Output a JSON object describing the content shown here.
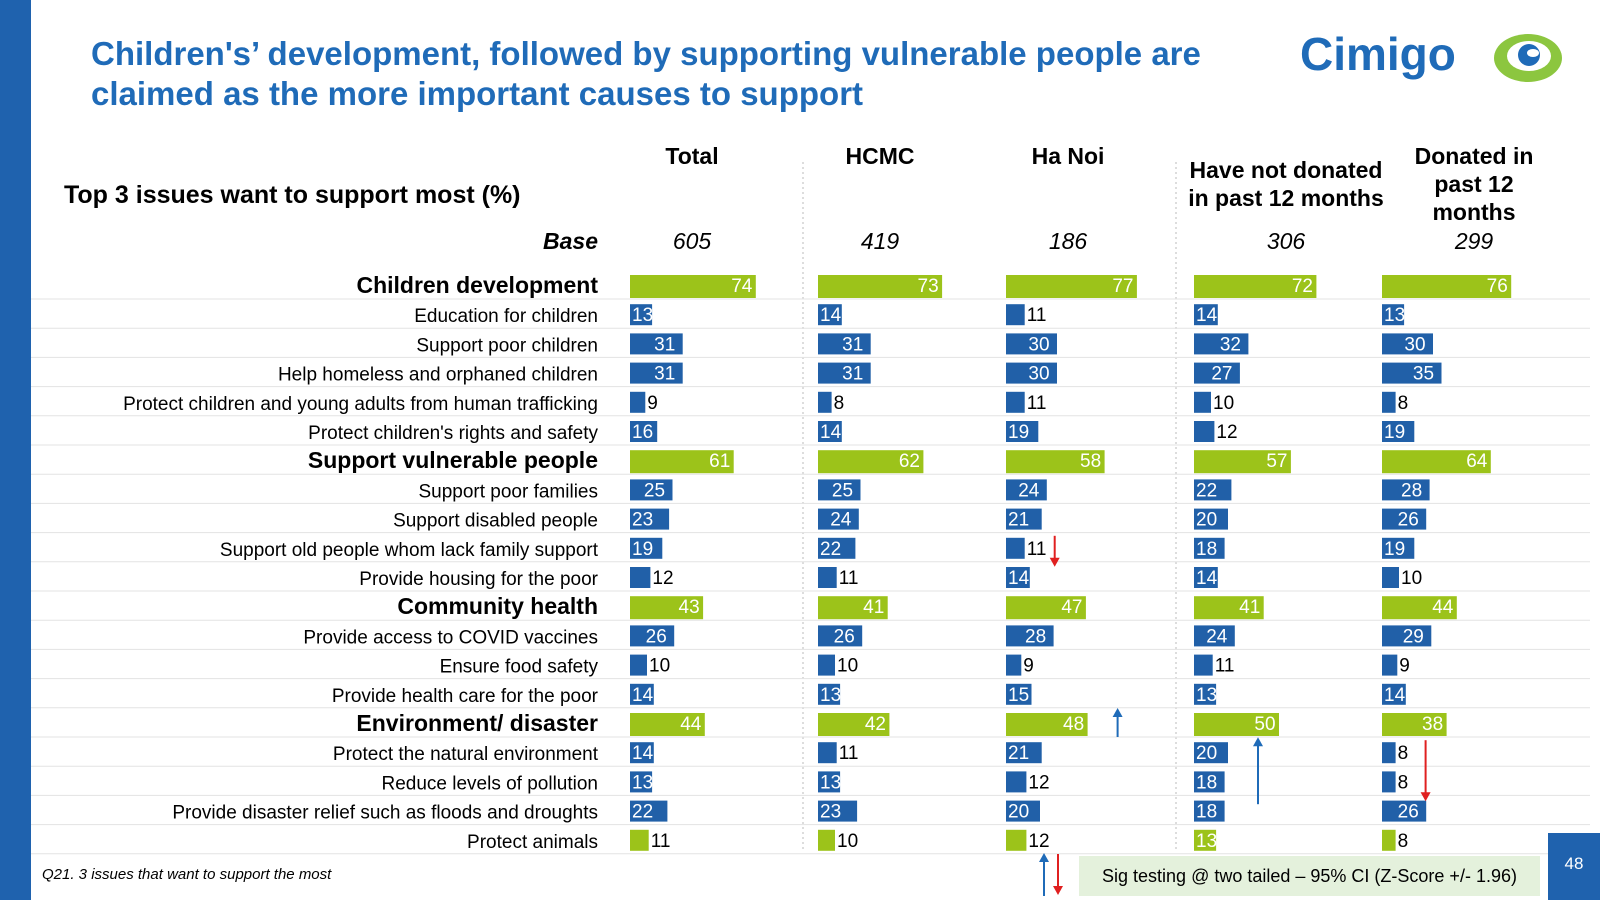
{
  "slide": {
    "title": "Children's’ development, followed by supporting vulnerable people are claimed as the more important causes to support",
    "logo_text": "Cimigo",
    "footnote": "Q21. 3 issues that want to support the most",
    "sig_note": "Sig testing @ two tailed – 95% CI (Z-Score +/- 1.96)",
    "page_number": "48"
  },
  "colors": {
    "title": "#1f6bb8",
    "category_bar": "#9cc31a",
    "item_bar": "#2160a8",
    "highlight_bar": "#9cc31a",
    "arrow_up": "#1f6bb8",
    "arrow_down": "#e02020",
    "sidebar": "#1f62ae",
    "logo_green": "#8cc63f"
  },
  "chart_data": {
    "type": "bar",
    "title": "Top 3 issues want to support most (%)",
    "base_label": "Base",
    "columns": [
      "Total",
      "HCMC",
      "Ha Noi",
      "Have not donated in past 12 months",
      "Donated in past 12 months"
    ],
    "bases": [
      "605",
      "419",
      "186",
      "306",
      "299"
    ],
    "max_value": 100,
    "rows": [
      {
        "label": "Children development",
        "category": true,
        "values": [
          74,
          73,
          77,
          72,
          76
        ]
      },
      {
        "label": "Education for children",
        "category": false,
        "values": [
          13,
          14,
          11,
          14,
          13
        ]
      },
      {
        "label": "Support poor children",
        "category": false,
        "values": [
          31,
          31,
          30,
          32,
          30
        ]
      },
      {
        "label": "Help homeless and orphaned children",
        "category": false,
        "values": [
          31,
          31,
          30,
          27,
          35
        ]
      },
      {
        "label": "Protect children and young adults from human trafficking",
        "category": false,
        "values": [
          9,
          8,
          11,
          10,
          8
        ]
      },
      {
        "label": "Protect children's rights and safety",
        "category": false,
        "values": [
          16,
          14,
          19,
          12,
          19
        ]
      },
      {
        "label": "Support vulnerable people",
        "category": true,
        "values": [
          61,
          62,
          58,
          57,
          64
        ]
      },
      {
        "label": "Support poor families",
        "category": false,
        "values": [
          25,
          25,
          24,
          22,
          28
        ]
      },
      {
        "label": "Support disabled people",
        "category": false,
        "values": [
          23,
          24,
          21,
          20,
          26
        ]
      },
      {
        "label": "Support old people whom lack family support",
        "category": false,
        "values": [
          19,
          22,
          11,
          18,
          19
        ]
      },
      {
        "label": "Provide housing for the poor",
        "category": false,
        "values": [
          12,
          11,
          14,
          14,
          10
        ]
      },
      {
        "label": "Community health",
        "category": true,
        "values": [
          43,
          41,
          47,
          41,
          44
        ]
      },
      {
        "label": "Provide access to COVID vaccines",
        "category": false,
        "values": [
          26,
          26,
          28,
          24,
          29
        ]
      },
      {
        "label": "Ensure food safety",
        "category": false,
        "values": [
          10,
          10,
          9,
          11,
          9
        ]
      },
      {
        "label": "Provide health care for the poor",
        "category": false,
        "values": [
          14,
          13,
          15,
          13,
          14
        ]
      },
      {
        "label": "Environment/ disaster",
        "category": true,
        "values": [
          44,
          42,
          48,
          50,
          38
        ]
      },
      {
        "label": "Protect the natural environment",
        "category": false,
        "values": [
          14,
          11,
          21,
          20,
          8
        ]
      },
      {
        "label": "Reduce levels of pollution",
        "category": false,
        "values": [
          13,
          13,
          12,
          18,
          8
        ]
      },
      {
        "label": "Provide disaster relief such as floods and droughts",
        "category": false,
        "values": [
          22,
          23,
          20,
          18,
          26
        ]
      },
      {
        "label": "Protect animals",
        "category": false,
        "highlight": true,
        "values": [
          11,
          10,
          12,
          13,
          8
        ]
      }
    ],
    "sig_markers": [
      {
        "row": 9,
        "col": 2,
        "dir": "down"
      },
      {
        "row": 15,
        "col": 2,
        "dir": "up"
      },
      {
        "row": 16,
        "col": 3,
        "dir": "up"
      },
      {
        "row": 16,
        "col": 4,
        "dir": "down"
      }
    ]
  }
}
